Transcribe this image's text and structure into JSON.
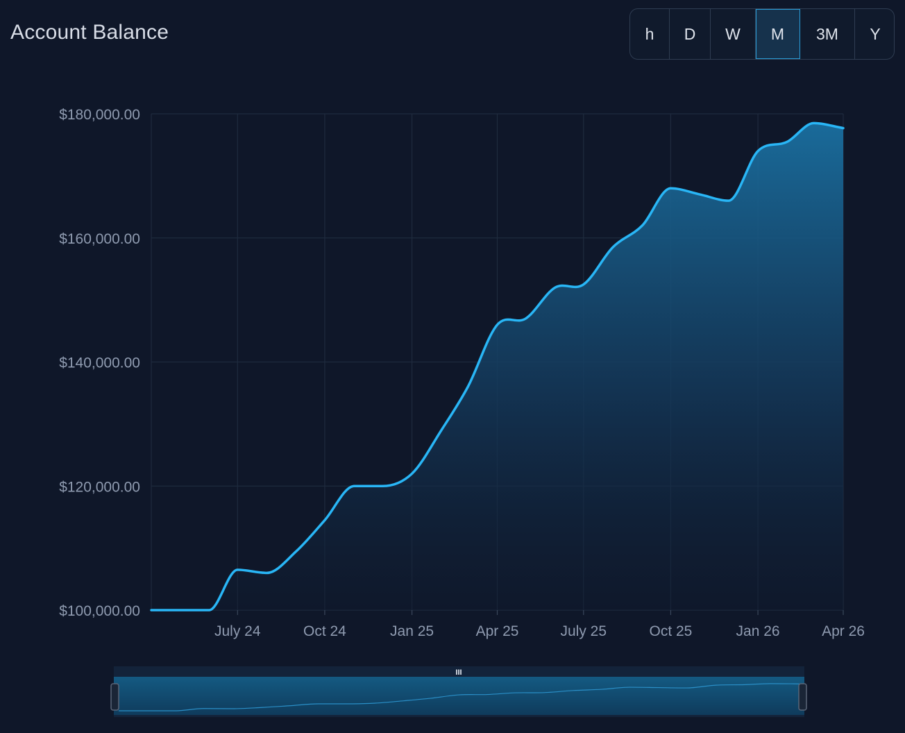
{
  "title": "Account Balance",
  "ranges": [
    "h",
    "D",
    "W",
    "M",
    "3M",
    "Y"
  ],
  "active_range": "M",
  "navigator_grip": "III",
  "colors": {
    "background": "#0f1729",
    "line": "#29b6f6",
    "grid": "#1f2b3e",
    "tick_text": "#8f9bb0"
  },
  "chart_data": {
    "type": "area",
    "title": "Account Balance",
    "xlabel": "",
    "ylabel": "",
    "x_ticks": [
      "July 24",
      "Oct 24",
      "Jan 25",
      "Apr 25",
      "July 25",
      "Oct 25",
      "Jan 26",
      "Apr 26"
    ],
    "y_ticks": [
      "$100,000.00",
      "$120,000.00",
      "$140,000.00",
      "$160,000.00",
      "$180,000.00"
    ],
    "ylim": [
      100000,
      180000
    ],
    "xlim": [
      "2024-04-01",
      "2026-04-01"
    ],
    "grid": true,
    "series": [
      {
        "x": [
          "2024-04-01",
          "2024-05-01",
          "2024-06-01",
          "2024-07-01",
          "2024-08-01",
          "2024-09-01",
          "2024-10-01",
          "2024-11-01",
          "2024-12-01",
          "2025-01-01",
          "2025-02-01",
          "2025-03-01",
          "2025-04-01",
          "2025-05-01",
          "2025-06-01",
          "2025-07-01",
          "2025-08-01",
          "2025-09-01",
          "2025-10-01",
          "2025-11-01",
          "2025-12-01",
          "2026-01-01",
          "2026-02-01",
          "2026-03-01",
          "2026-04-01"
        ],
        "values": [
          100000,
          100000,
          100000,
          106500,
          106000,
          109500,
          114500,
          120000,
          120000,
          122000,
          129000,
          136000,
          146000,
          147000,
          152000,
          152500,
          158500,
          162000,
          168000,
          167000,
          166000,
          174000,
          175500,
          178500,
          177700
        ]
      }
    ]
  }
}
